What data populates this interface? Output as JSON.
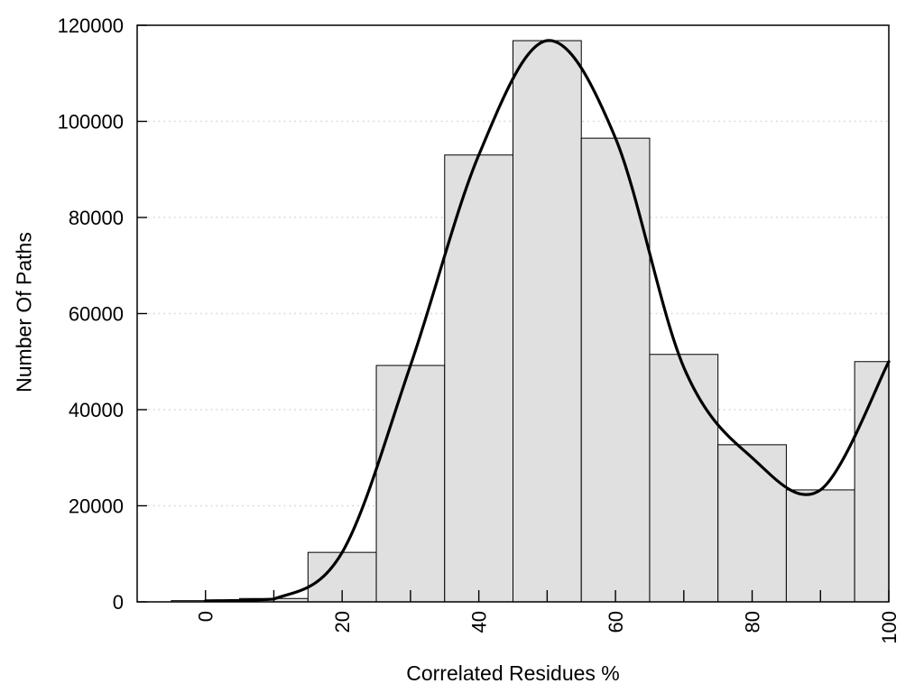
{
  "page": {
    "background": "#ffffff"
  },
  "chart_data": {
    "type": "bar",
    "variant": "histogram_with_smooth_curve",
    "title": "",
    "xlabel": "Correlated Residues %",
    "ylabel": "Number Of Paths",
    "xlim": [
      -10,
      100
    ],
    "ylim": [
      0,
      120000
    ],
    "legend": "none",
    "grid": "y-dotted",
    "bin_width": 10,
    "categories": [
      0,
      10,
      20,
      30,
      40,
      50,
      60,
      70,
      80,
      90,
      100
    ],
    "values": [
      250,
      700,
      10300,
      49200,
      93000,
      116800,
      96500,
      51500,
      32700,
      23300,
      50000
    ],
    "curve_points": [
      [
        0,
        200
      ],
      [
        10,
        600
      ],
      [
        20,
        10300
      ],
      [
        30,
        49200
      ],
      [
        40,
        93000
      ],
      [
        50,
        116800
      ],
      [
        60,
        96500
      ],
      [
        70,
        48800
      ],
      [
        80,
        30000
      ],
      [
        90,
        23300
      ],
      [
        100,
        50000
      ]
    ],
    "x_tick_marks": [
      0,
      10,
      20,
      30,
      40,
      50,
      60,
      70,
      80,
      90,
      100
    ],
    "x_tick_labels": [
      {
        "value": 0,
        "label": "0"
      },
      {
        "value": 20,
        "label": "20"
      },
      {
        "value": 40,
        "label": "40"
      },
      {
        "value": 60,
        "label": "60"
      },
      {
        "value": 80,
        "label": "80"
      },
      {
        "value": 100,
        "label": "100"
      }
    ],
    "y_ticks": [
      {
        "value": 0,
        "label": "0"
      },
      {
        "value": 20000,
        "label": "20000"
      },
      {
        "value": 40000,
        "label": "40000"
      },
      {
        "value": 60000,
        "label": "60000"
      },
      {
        "value": 80000,
        "label": "80000"
      },
      {
        "value": 100000,
        "label": "100000"
      },
      {
        "value": 120000,
        "label": "120000"
      }
    ],
    "gridline_values": [
      20000,
      40000,
      60000,
      80000,
      100000
    ],
    "colors": {
      "bar_fill": "#e0e0e0",
      "bar_border": "#000000",
      "curve": "#000000",
      "gridline": "#d4d4d4",
      "axis": "#000000",
      "text": "#000000",
      "background": "#ffffff"
    }
  }
}
